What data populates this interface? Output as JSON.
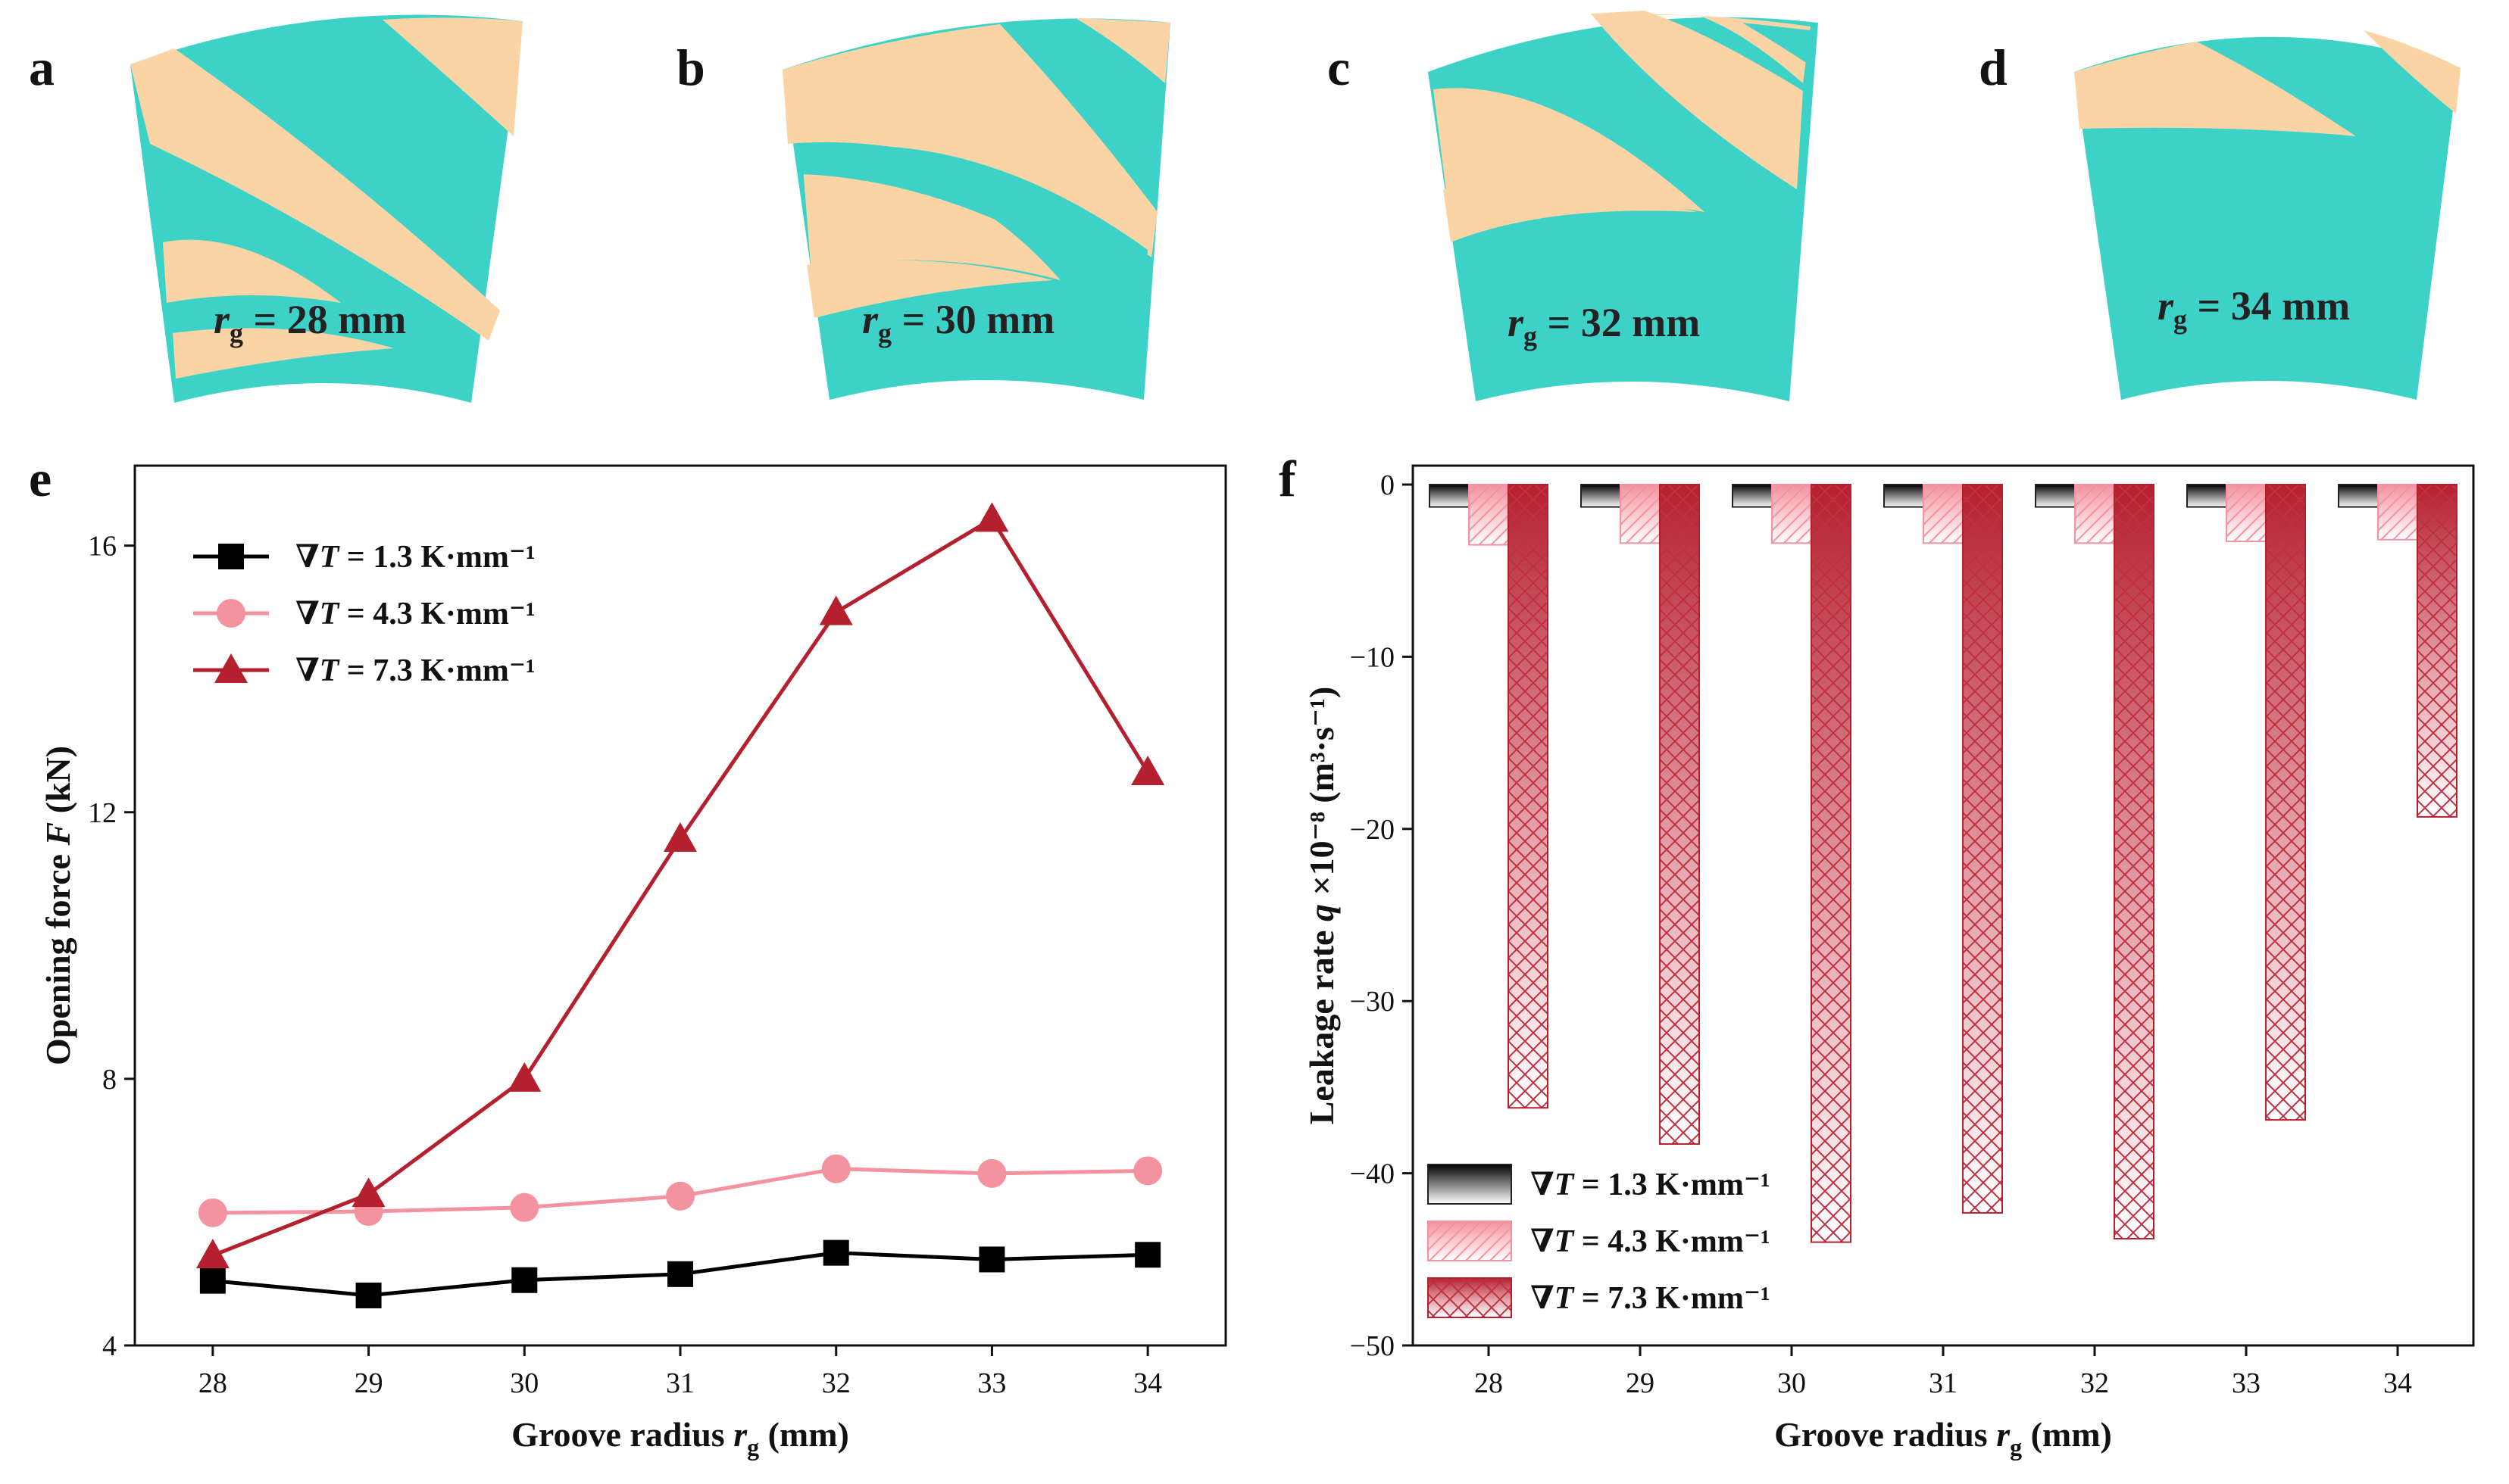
{
  "colors": {
    "groove": "#3dd2c8",
    "land": "#fbd4a6",
    "series_black": "#000000",
    "series_pink": "#f4929f",
    "series_red": "#b5202f"
  },
  "top_panels": [
    {
      "letter": "a",
      "label_r": "r",
      "label_sub": "g",
      "label_value": " = 28 mm"
    },
    {
      "letter": "b",
      "label_r": "r",
      "label_sub": "g",
      "label_value": " = 30 mm"
    },
    {
      "letter": "c",
      "label_r": "r",
      "label_sub": "g",
      "label_value": " = 32 mm"
    },
    {
      "letter": "d",
      "label_r": "r",
      "label_sub": "g",
      "label_value": " = 34 mm"
    }
  ],
  "chart_data": [
    {
      "panel": "e",
      "type": "line",
      "x": [
        28,
        29,
        30,
        31,
        32,
        33,
        34
      ],
      "x_tick_labels": [
        "28",
        "29",
        "30",
        "31",
        "32",
        "33",
        "34"
      ],
      "xlim": [
        27.5,
        34.5
      ],
      "ylim": [
        4,
        17.2
      ],
      "y_ticks": [
        4,
        8,
        12,
        16
      ],
      "y_tick_labels": [
        "4",
        "8",
        "12",
        "16"
      ],
      "xlabel_main": "Groove radius ",
      "xlabel_var": "r",
      "xlabel_sub": "g",
      "xlabel_unit": " (mm)",
      "ylabel_main": "Opening force ",
      "ylabel_var": "F",
      "ylabel_unit": " (kN)",
      "legend_position": "top-left",
      "series": [
        {
          "name_prefix": "∇",
          "name_var": "T",
          "name_rest": " = 1.3 K·mm⁻¹",
          "marker": "square",
          "color": "#000000",
          "values": [
            4.97,
            4.75,
            4.98,
            5.07,
            5.39,
            5.29,
            5.36
          ]
        },
        {
          "name_prefix": "∇",
          "name_var": "T",
          "name_rest": " = 4.3 K·mm⁻¹",
          "marker": "circle",
          "color": "#f4929f",
          "values": [
            5.99,
            6.01,
            6.07,
            6.24,
            6.65,
            6.58,
            6.62
          ]
        },
        {
          "name_prefix": "∇",
          "name_var": "T",
          "name_rest": " = 7.3 K·mm⁻¹",
          "marker": "triangle",
          "color": "#b5202f",
          "values": [
            5.35,
            6.27,
            8.0,
            11.6,
            15.0,
            16.4,
            12.6
          ]
        }
      ]
    },
    {
      "panel": "f",
      "type": "bar",
      "categories": [
        "28",
        "29",
        "30",
        "31",
        "32",
        "33",
        "34"
      ],
      "ylim": [
        -50,
        0
      ],
      "y_ticks": [
        0,
        -10,
        -20,
        -30,
        -40,
        -50
      ],
      "y_tick_labels": [
        "0",
        "−10",
        "−20",
        "−30",
        "−40",
        "−50"
      ],
      "xlabel_main": "Groove radius ",
      "xlabel_var": "r",
      "xlabel_sub": "g",
      "xlabel_unit": " (mm)",
      "ylabel_main": "Leakage rate ",
      "ylabel_var": "q",
      "ylabel_rest": " ×10⁻⁸ (m³·s⁻¹)",
      "legend_position": "bottom-left",
      "series": [
        {
          "name_prefix": "∇",
          "name_var": "T",
          "name_rest": " = 1.3 K·mm⁻¹",
          "color": "#000000",
          "values": [
            -1.3,
            -1.3,
            -1.3,
            -1.3,
            -1.3,
            -1.3,
            -1.3
          ]
        },
        {
          "name_prefix": "∇",
          "name_var": "T",
          "name_rest": " = 4.3 K·mm⁻¹",
          "color": "#f4929f",
          "values": [
            -3.5,
            -3.4,
            -3.4,
            -3.4,
            -3.4,
            -3.3,
            -3.2
          ]
        },
        {
          "name_prefix": "∇",
          "name_var": "T",
          "name_rest": " = 7.3 K·mm⁻¹",
          "color": "#b5202f",
          "values": [
            -36.2,
            -38.3,
            -44.0,
            -42.3,
            -43.8,
            -36.9,
            -19.3
          ]
        }
      ]
    }
  ]
}
